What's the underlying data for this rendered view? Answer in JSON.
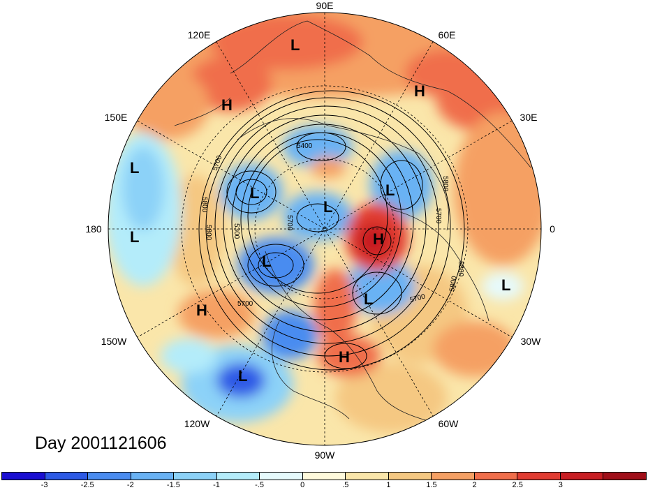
{
  "longitude_labels": {
    "lon_90e": "90E",
    "lon_60e": "60E",
    "lon_30e": "30E",
    "lon_0": "0",
    "lon_30w": "30W",
    "lon_60w": "60W",
    "lon_90w": "90W",
    "lon_120w": "120W",
    "lon_150w": "150W",
    "lon_180": "180",
    "lon_150e": "150E",
    "lon_120e": "120E"
  },
  "day_label": "Day 2001121606",
  "colorbar": {
    "colors": [
      "#1a0fd2",
      "#2d5ae6",
      "#4a8cf0",
      "#69b2f4",
      "#8cd2f8",
      "#b4ecfa",
      "#e6fafc",
      "#fffadc",
      "#fae6aa",
      "#f5c882",
      "#f5a064",
      "#f06e4b",
      "#e13c32",
      "#c81e23",
      "#a00f19"
    ],
    "ticks": [
      "-3",
      "-2.5",
      "-2",
      "-1.5",
      "-1",
      "-.5",
      "0",
      ".5",
      "1",
      "1.5",
      "2",
      "2.5",
      "3"
    ]
  },
  "pressure_systems": {
    "labels": [
      "L",
      "H",
      "H",
      "L",
      "L",
      "L",
      "L",
      "L",
      "H",
      "L",
      "H",
      "L",
      "L",
      "H",
      "L"
    ]
  },
  "contour_labels": [
    "5400",
    "5700",
    "5800",
    "5800",
    "5300",
    "5700",
    "5800",
    "5700",
    "5800",
    "5700",
    "5700",
    "5800"
  ]
}
